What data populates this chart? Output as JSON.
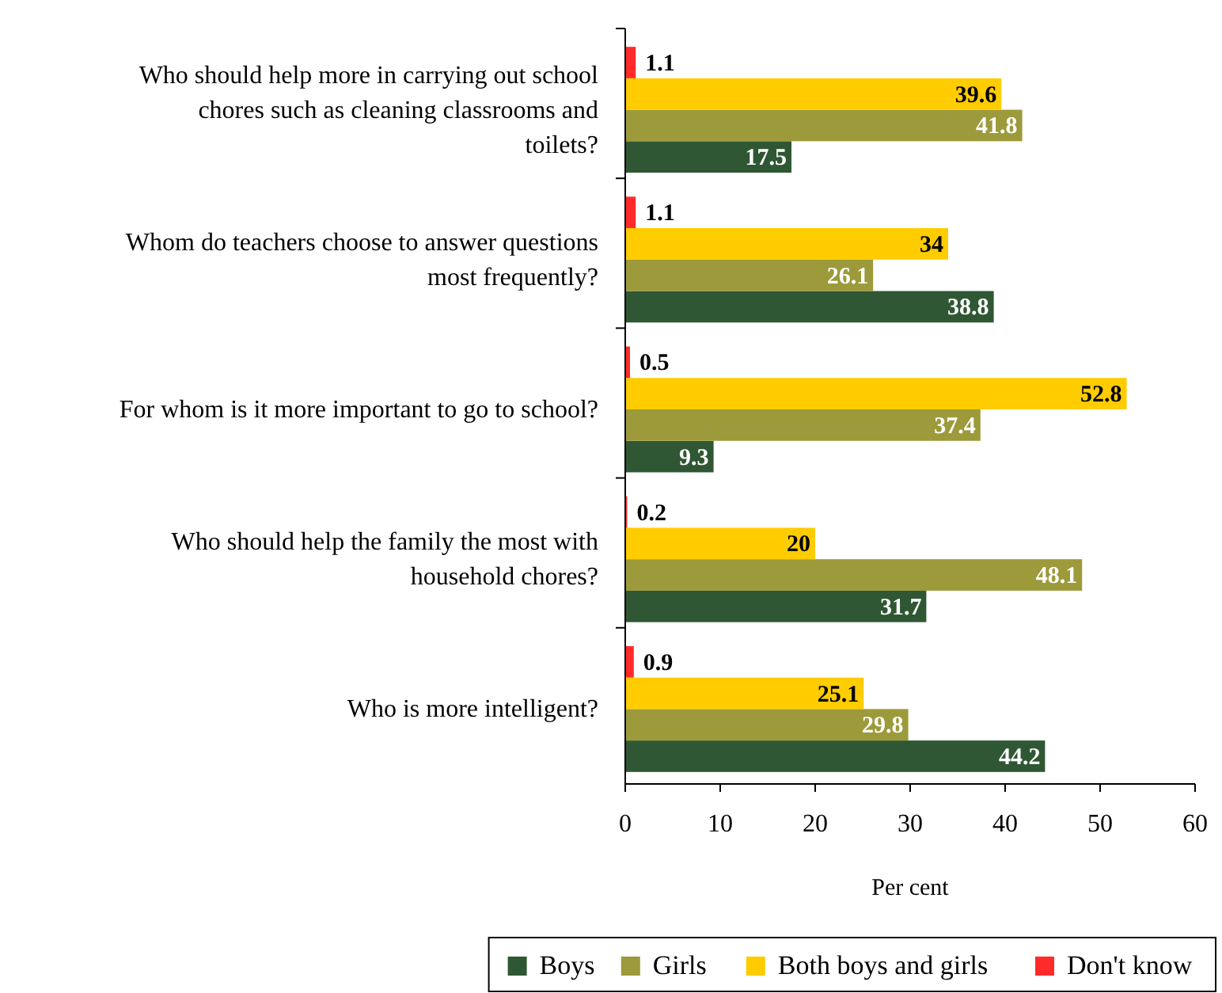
{
  "chart_data": {
    "type": "bar",
    "orientation": "horizontal",
    "xlabel": "Per cent",
    "categories": [
      "Who should help more in carrying out school chores such as cleaning classrooms and toilets?",
      "Whom do teachers choose to answer questions most frequently?",
      "For whom is it more important to go to school?",
      "Who should help the family the most with household chores?",
      "Who is more intelligent?"
    ],
    "series": [
      {
        "name": "Boys",
        "color": "#2f5733",
        "values": [
          17.5,
          38.8,
          9.3,
          31.7,
          44.2
        ]
      },
      {
        "name": "Girls",
        "color": "#9c9a3a",
        "values": [
          41.8,
          26.1,
          37.4,
          48.1,
          29.8
        ]
      },
      {
        "name": "Both boys and girls",
        "color": "#ffcc00",
        "values": [
          39.6,
          34,
          52.8,
          20,
          25.1
        ]
      },
      {
        "name": "Don't know",
        "color": "#ff2b2b",
        "values": [
          1.1,
          1.1,
          0.5,
          0.2,
          0.9
        ]
      }
    ],
    "xlim": [
      0,
      60
    ],
    "xticks": [
      0,
      10,
      20,
      30,
      40,
      50,
      60
    ],
    "data_labels": true,
    "legend": "bottom",
    "grid": false
  }
}
